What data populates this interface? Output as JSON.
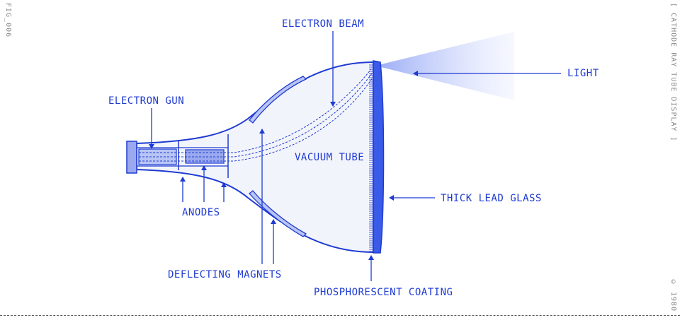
{
  "figure_id": "FIG_006",
  "title": "[ CATHODE RAY TUBE DISPLAY ]",
  "year": "© 1980",
  "labels": {
    "electron_beam": "ELECTRON BEAM",
    "light": "LIGHT",
    "electron_gun": "ELECTRON GUN",
    "vacuum_tube": "VACUUM TUBE",
    "thick_lead_glass": "THICK LEAD GLASS",
    "anodes": "ANODES",
    "deflecting_magnets": "DEFLECTING MAGNETS",
    "phosphorescent_coating": "PHOSPHORESCENT COATING"
  },
  "colors": {
    "line": "#1f3bd1",
    "fill_light": "#f2f4fb",
    "fill_part": "#9aa9ef",
    "glass": "#3a5ae8",
    "light_beam": "#c4cffa"
  }
}
